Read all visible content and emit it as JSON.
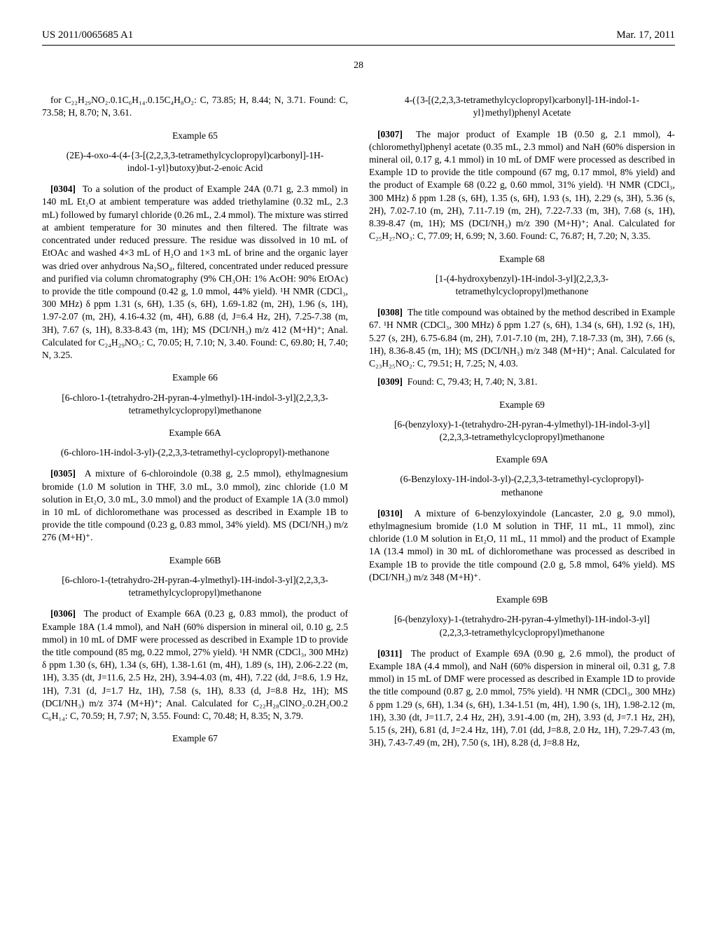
{
  "header": {
    "pub_number": "US 2011/0065685 A1",
    "pub_date": "Mar. 17, 2011"
  },
  "page_left": "28",
  "page_right": "",
  "frag_top": "for C₂₂H₂₉NO₂.0.1C₆H₁₄.0.15C₄H₈O₂: C, 73.85; H, 8.44; N, 3.71. Found: C, 73.58; H, 8.70; N, 3.61.",
  "ex65": {
    "heading": "Example 65",
    "name": "(2E)-4-oxo-4-(4-{3-[(2,2,3,3-tetramethylcyclopropyl)carbonyl]-1H-indol-1-yl}butoxy)but-2-enoic Acid",
    "para_num": "[0304]",
    "body": "To a solution of the product of Example 24A (0.71 g, 2.3 mmol) in 140 mL Et₂O at ambient temperature was added triethylamine (0.32 mL, 2.3 mL) followed by fumaryl chloride (0.26 mL, 2.4 mmol). The mixture was stirred at ambient temperature for 30 minutes and then filtered. The filtrate was concentrated under reduced pressure. The residue was dissolved in 10 mL of EtOAc and washed 4×3 mL of H₂O and 1×3 mL of brine and the organic layer was dried over anhydrous Na₂SO₄, filtered, concentrated under reduced pressure and purified via column chromatography (9% CH₃OH: 1% AcOH: 90% EtOAc) to provide the title compound (0.42 g, 1.0 mmol, 44% yield). ¹H NMR (CDCl₃, 300 MHz) δ ppm 1.31 (s, 6H), 1.35 (s, 6H), 1.69-1.82 (m, 2H), 1.96 (s, 1H), 1.97-2.07 (m, 2H), 4.16-4.32 (m, 4H), 6.88 (d, J=6.4 Hz, 2H), 7.25-7.38 (m, 3H), 7.67 (s, 1H), 8.33-8.43 (m, 1H); MS (DCI/NH₃) m/z 412 (M+H)⁺; Anal. Calculated for C₂₄H₂₉NO₅: C, 70.05; H, 7.10; N, 3.40. Found: C, 69.80; H, 7.40; N, 3.25."
  },
  "ex66": {
    "heading": "Example 66",
    "name": "[6-chloro-1-(tetrahydro-2H-pyran-4-ylmethyl)-1H-indol-3-yl](2,2,3,3-tetramethylcyclopropyl)methanone"
  },
  "ex66a": {
    "heading": "Example 66A",
    "name": "(6-chloro-1H-indol-3-yl)-(2,2,3,3-tetramethyl-cyclopropyl)-methanone",
    "para_num": "[0305]",
    "body": "A mixture of 6-chloroindole (0.38 g, 2.5 mmol), ethylmagnesium bromide (1.0 M solution in THF, 3.0 mL, 3.0 mmol), zinc chloride (1.0 M solution in Et₂O, 3.0 mL, 3.0 mmol) and the product of Example 1A (3.0 mmol) in 10 mL of dichloromethane was processed as described in Example 1B to provide the title compound (0.23 g, 0.83 mmol, 34% yield). MS (DCI/NH₃) m/z 276 (M+H)⁺."
  },
  "ex66b": {
    "heading": "Example 66B",
    "name": "[6-chloro-1-(tetrahydro-2H-pyran-4-ylmethyl)-1H-indol-3-yl](2,2,3,3-tetramethylcyclopropyl)methanone",
    "para_num": "[0306]",
    "body": "The product of Example 66A (0.23 g, 0.83 mmol), the product of Example 18A (1.4 mmol), and NaH (60% dispersion in mineral oil, 0.10 g, 2.5 mmol) in 10 mL of DMF were processed as described in Example 1D to provide the title compound (85 mg, 0.22 mmol, 27% yield). ¹H NMR (CDCl₃, 300 MHz) δ ppm 1.30 (s, 6H), 1.34 (s, 6H), 1.38-1.61 (m, 4H), 1.89 (s, 1H), 2.06-2.22 (m, 1H), 3.35 (dt, J=11.6, 2.5 Hz, 2H), 3.94-4.03 (m, 4H), 7.22 (dd, J=8.6, 1.9 Hz, 1H), 7.31 (d, J=1.7 Hz, 1H), 7.58 (s, 1H), 8.33 (d, J=8.8 Hz, 1H); MS (DCI/NH₃) m/z 374 (M+H)⁺; Anal. Calculated for C₂₂H₂₈ClNO₂.0.2H₂O0.2 C₆H₁₄: C, 70.59; H, 7.97; N, 3.55. Found: C, 70.48; H, 8.35; N, 3.79."
  },
  "ex67": {
    "heading": "Example 67",
    "name": "4-({3-[(2,2,3,3-tetramethylcyclopropyl)carbonyl]-1H-indol-1-yl}methyl)phenyl Acetate",
    "para_num": "[0307]",
    "body": "The major product of Example 1B (0.50 g, 2.1 mmol), 4-(chloromethyl)phenyl acetate (0.35 mL, 2.3 mmol) and NaH (60% dispersion in mineral oil, 0.17 g, 4.1 mmol) in 10 mL of DMF were processed as described in Example 1D to provide the title compound (67 mg, 0.17 mmol, 8% yield) and the product of Example 68 (0.22 g, 0.60 mmol, 31% yield). ¹H NMR (CDCl₃, 300 MHz) δ ppm 1.28 (s, 6H), 1.35 (s, 6H), 1.93 (s, 1H), 2.29 (s, 3H), 5.36 (s, 2H), 7.02-7.10 (m, 2H), 7.11-7.19 (m, 2H), 7.22-7.33 (m, 3H), 7.68 (s, 1H), 8.39-8.47 (m, 1H); MS (DCI/NH₃) m/z 390 (M+H)⁺; Anal. Calculated for C₂₅H₂₇NO₃: C, 77.09; H, 6.99; N, 3.60. Found: C, 76.87; H, 7.20; N, 3.35."
  },
  "ex68": {
    "heading": "Example 68",
    "name": "[1-(4-hydroxybenzyl)-1H-indol-3-yl](2,2,3,3-tetramethylcyclopropyl)methanone",
    "para_num": "[0308]",
    "body": "The title compound was obtained by the method described in Example 67. ¹H NMR (CDCl₃, 300 MHz) δ ppm 1.27 (s, 6H), 1.34 (s, 6H), 1.92 (s, 1H), 5.27 (s, 2H), 6.75-6.84 (m, 2H), 7.01-7.10 (m, 2H), 7.18-7.33 (m, 3H), 7.66 (s, 1H), 8.36-8.45 (m, 1H); MS (DCI/NH₃) m/z 348 (M+H)⁺; Anal. Calculated for C₂₃H₂₅NO₂: C, 79.51; H, 7.25; N, 4.03.",
    "para2_num": "[0309]",
    "body2": "Found: C, 79.43; H, 7.40; N, 3.81."
  },
  "ex69": {
    "heading": "Example 69",
    "name": "[6-(benzyloxy)-1-(tetrahydro-2H-pyran-4-ylmethyl)-1H-indol-3-yl](2,2,3,3-tetramethylcyclopropyl)methanone"
  },
  "ex69a": {
    "heading": "Example 69A",
    "name": "(6-Benzyloxy-1H-indol-3-yl)-(2,2,3,3-tetramethyl-cyclopropyl)-methanone",
    "para_num": "[0310]",
    "body": "A mixture of 6-benzyloxyindole (Lancaster, 2.0 g, 9.0 mmol), ethylmagnesium bromide (1.0 M solution in THF, 11 mL, 11 mmol), zinc chloride (1.0 M solution in Et₂O, 11 mL, 11 mmol) and the product of Example 1A (13.4 mmol) in 30 mL of dichloromethane was processed as described in Example 1B to provide the title compound (2.0 g, 5.8 mmol, 64% yield). MS (DCI/NH₃) m/z 348 (M+H)⁺."
  },
  "ex69b": {
    "heading": "Example 69B",
    "name": "[6-(benzyloxy)-1-(tetrahydro-2H-pyran-4-ylmethyl)-1H-indol-3-yl](2,2,3,3-tetramethylcyclopropyl)methanone",
    "para_num": "[0311]",
    "body": "The product of Example 69A (0.90 g, 2.6 mmol), the product of Example 18A (4.4 mmol), and NaH (60% dispersion in mineral oil, 0.31 g, 7.8 mmol) in 15 mL of DMF were processed as described in Example 1D to provide the title compound (0.87 g, 2.0 mmol, 75% yield). ¹H NMR (CDCl₃, 300 MHz) δ ppm 1.29 (s, 6H), 1.34 (s, 6H), 1.34-1.51 (m, 4H), 1.90 (s, 1H), 1.98-2.12 (m, 1H), 3.30 (dt, J=11.7, 2.4 Hz, 2H), 3.91-4.00 (m, 2H), 3.93 (d, J=7.1 Hz, 2H), 5.15 (s, 2H), 6.81 (d, J=2.4 Hz, 1H), 7.01 (dd, J=8.8, 2.0 Hz, 1H), 7.29-7.43 (m, 3H), 7.43-7.49 (m, 2H), 7.50 (s, 1H), 8.28 (d, J=8.8 Hz,"
  }
}
